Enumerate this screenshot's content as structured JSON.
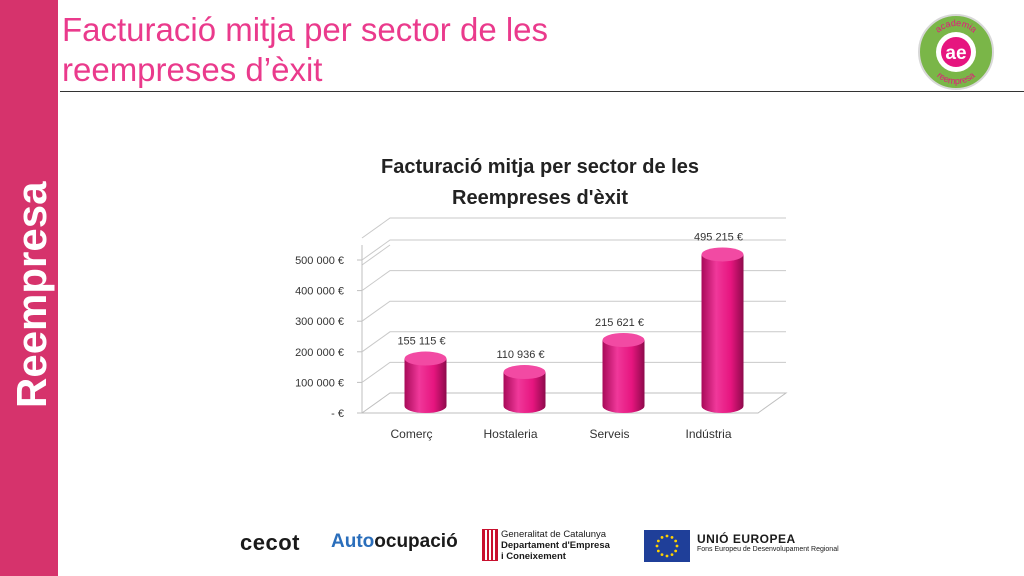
{
  "slide": {
    "title_line1": "Facturació mitja per sector de les",
    "title_line2": "reempreses d’èxit",
    "side_logo_text": "Reempresa",
    "corner_logo": {
      "letters": "ae",
      "arc_top": "academia",
      "arc_bottom": "reempresa"
    }
  },
  "chart_data": {
    "type": "bar",
    "title_line1": "Facturació mitja per sector de les",
    "title_line2": "Reempreses d'èxit",
    "categories": [
      "Comerç",
      "Hostaleria",
      "Serveis",
      "Indústria"
    ],
    "values": [
      155115,
      110936,
      215621,
      495215
    ],
    "data_labels": [
      "155 115 €",
      "110 936 €",
      "215 621 €",
      "495 215 €"
    ],
    "yticks": [
      0,
      100000,
      200000,
      300000,
      400000,
      500000
    ],
    "ytick_labels": [
      "-   €",
      "100 000 €",
      "200 000 €",
      "300 000 €",
      "400 000 €",
      "500 000 €"
    ],
    "ylim": [
      0,
      500000
    ],
    "style": "3d-cylinder",
    "bar_color": "#e6157f",
    "grid": true
  },
  "footer": {
    "cecot": "cecot",
    "auto_prefix": "Auto",
    "auto_suffix": "ocupació",
    "gencat_line1": "Generalitat de Catalunya",
    "gencat_line2": "Departament d'Empresa",
    "gencat_line3": "i Coneixement",
    "eu_title": "UNIÓ EUROPEA",
    "eu_subtitle": "Fons Europeu de Desenvolupament Regional"
  },
  "colors": {
    "brand_pink": "#ea3a8c",
    "band": "#d6336c",
    "logo_green": "#7ab648"
  }
}
